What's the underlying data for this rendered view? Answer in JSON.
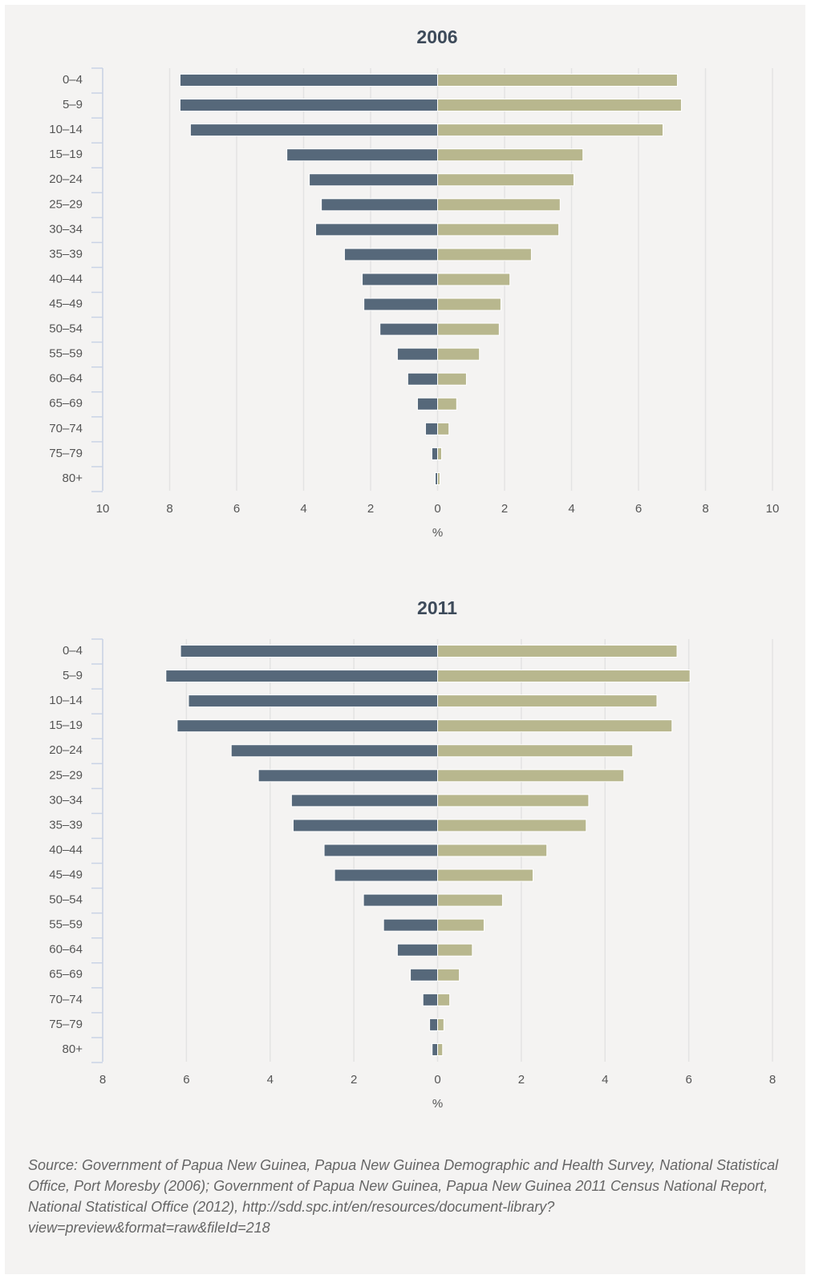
{
  "chart_data": [
    {
      "type": "pyramid",
      "title": "2006",
      "xlabel": "%",
      "categories": [
        "0–4",
        "5–9",
        "10–14",
        "15–19",
        "20–24",
        "25–29",
        "30–34",
        "35–39",
        "40–44",
        "45–49",
        "50–54",
        "55–59",
        "60–64",
        "65–69",
        "70–74",
        "75–79",
        "80+"
      ],
      "series": [
        {
          "color": "#56687a",
          "values": [
            -7.69,
            -7.69,
            -7.38,
            -4.5,
            -3.83,
            -3.47,
            -3.64,
            -2.78,
            -2.25,
            -2.2,
            -1.72,
            -1.2,
            -0.89,
            -0.6,
            -0.36,
            -0.17,
            -0.07
          ]
        },
        {
          "color": "#b8b78e",
          "values": [
            7.16,
            7.28,
            6.73,
            4.34,
            4.07,
            3.66,
            3.62,
            2.8,
            2.16,
            1.89,
            1.84,
            1.25,
            0.86,
            0.57,
            0.34,
            0.12,
            0.07
          ]
        }
      ],
      "xlim": [
        -10,
        10
      ],
      "xticks": [
        {
          "value": -10,
          "label": "10"
        },
        {
          "value": -8,
          "label": "8"
        },
        {
          "value": -6,
          "label": "6"
        },
        {
          "value": -4,
          "label": "4"
        },
        {
          "value": -2,
          "label": "2"
        },
        0,
        2,
        4,
        6,
        8,
        10
      ],
      "grid": true
    },
    {
      "type": "pyramid",
      "title": "2011",
      "xlabel": "%",
      "categories": [
        "0–4",
        "5–9",
        "10–14",
        "15–19",
        "20–24",
        "25–29",
        "30–34",
        "35–39",
        "40–44",
        "45–49",
        "50–54",
        "55–59",
        "60–64",
        "65–69",
        "70–74",
        "75–79",
        "80+"
      ],
      "series": [
        {
          "color": "#56687a",
          "values": [
            -6.14,
            -6.49,
            -5.95,
            -6.22,
            -4.93,
            -4.28,
            -3.49,
            -3.45,
            -2.71,
            -2.46,
            -1.77,
            -1.29,
            -0.96,
            -0.65,
            -0.35,
            -0.19,
            -0.13
          ]
        },
        {
          "color": "#b8b78e",
          "values": [
            5.72,
            6.03,
            5.24,
            5.6,
            4.66,
            4.45,
            3.61,
            3.55,
            2.61,
            2.28,
            1.55,
            1.11,
            0.83,
            0.52,
            0.29,
            0.15,
            0.12
          ]
        }
      ],
      "xlim": [
        -8,
        8
      ],
      "xticks": [
        {
          "value": -8,
          "label": "8"
        },
        {
          "value": -6,
          "label": "6"
        },
        {
          "value": -4,
          "label": "4"
        },
        {
          "value": -2,
          "label": "2"
        },
        0,
        2,
        4,
        6,
        8
      ],
      "grid": true
    }
  ],
  "source": "Source: Government of Papua New Guinea, Papua New Guinea Demographic and Health Survey, National Statistical Office, Port Moresby (2006); Government of Papua New Guinea, Papua New Guinea 2011 Census National Report, National Statistical Office (2012), http://sdd.spc.int/en/resources/document-library?view=preview&format=raw&fileId=218"
}
